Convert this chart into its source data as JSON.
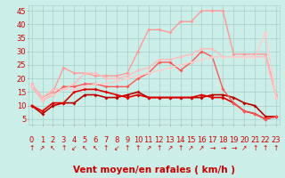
{
  "xlabel": "Vent moyen/en rafales ( km/h )",
  "bg_color": "#cceee8",
  "grid_color": "#aad4ce",
  "xticks": [
    0,
    1,
    2,
    3,
    4,
    5,
    6,
    7,
    8,
    9,
    10,
    11,
    12,
    13,
    14,
    15,
    16,
    17,
    18,
    19,
    20,
    21,
    22,
    23
  ],
  "yticks": [
    5,
    10,
    15,
    20,
    25,
    30,
    35,
    40,
    45
  ],
  "ylim": [
    3,
    47
  ],
  "xlim": [
    -0.3,
    23.3
  ],
  "wind_symbols": [
    "↑",
    "↗",
    "↖",
    "↑",
    "↙",
    "↖",
    "↖",
    "↑",
    "↙",
    "↑",
    "↑",
    "↗",
    "↑",
    "↗",
    "↑",
    "↗",
    "↗",
    "→",
    "→",
    "→",
    "↗",
    "↑",
    "↑",
    "↑"
  ],
  "series": [
    {
      "x": [
        0,
        1,
        2,
        3,
        4,
        5,
        6,
        7,
        8,
        9,
        10,
        11,
        12,
        13,
        14,
        15,
        16,
        17,
        18,
        19,
        20,
        21,
        22,
        23
      ],
      "y": [
        10,
        7,
        10,
        11,
        11,
        14,
        14,
        13,
        13,
        14,
        15,
        13,
        13,
        13,
        13,
        13,
        13,
        14,
        14,
        13,
        11,
        10,
        6,
        6
      ],
      "color": "#bb0000",
      "lw": 1.2,
      "marker": "D",
      "ms": 2.0
    },
    {
      "x": [
        0,
        1,
        2,
        3,
        4,
        5,
        6,
        7,
        8,
        9,
        10,
        11,
        12,
        13,
        14,
        15,
        16,
        17,
        18,
        19,
        20,
        21,
        22,
        23
      ],
      "y": [
        10,
        8,
        11,
        11,
        15,
        16,
        16,
        15,
        14,
        13,
        14,
        13,
        13,
        13,
        13,
        13,
        14,
        13,
        13,
        11,
        8,
        7,
        5,
        6
      ],
      "color": "#dd0000",
      "lw": 1.2,
      "marker": "D",
      "ms": 2.0
    },
    {
      "x": [
        0,
        1,
        2,
        3,
        4,
        5,
        6,
        7,
        8,
        9,
        10,
        11,
        12,
        13,
        14,
        15,
        16,
        17,
        18,
        19,
        20,
        21,
        22,
        23
      ],
      "y": [
        17,
        12,
        14,
        17,
        17,
        18,
        18,
        17,
        17,
        17,
        20,
        22,
        26,
        26,
        23,
        26,
        30,
        28,
        16,
        11,
        8,
        7,
        5,
        6
      ],
      "color": "#ff5555",
      "lw": 1.0,
      "marker": "D",
      "ms": 2.0
    },
    {
      "x": [
        0,
        1,
        2,
        3,
        4,
        5,
        6,
        7,
        8,
        9,
        10,
        11,
        12,
        13,
        14,
        15,
        16,
        17,
        18,
        19,
        20,
        21,
        22,
        23
      ],
      "y": [
        18,
        13,
        15,
        24,
        22,
        22,
        21,
        21,
        21,
        22,
        30,
        38,
        38,
        37,
        41,
        41,
        45,
        45,
        45,
        29,
        29,
        29,
        29,
        14
      ],
      "color": "#ff9999",
      "lw": 1.0,
      "marker": "D",
      "ms": 2.0
    },
    {
      "x": [
        0,
        1,
        2,
        3,
        4,
        5,
        6,
        7,
        8,
        9,
        10,
        11,
        12,
        13,
        14,
        15,
        16,
        17,
        18,
        19,
        20,
        21,
        22,
        23
      ],
      "y": [
        18,
        13,
        16,
        16,
        18,
        22,
        22,
        20,
        20,
        21,
        23,
        24,
        27,
        27,
        28,
        29,
        31,
        31,
        28,
        28,
        28,
        28,
        28,
        13
      ],
      "color": "#ffbbbb",
      "lw": 1.0,
      "marker": "D",
      "ms": 2.0
    },
    {
      "x": [
        0,
        1,
        2,
        3,
        4,
        5,
        6,
        7,
        8,
        9,
        10,
        11,
        12,
        13,
        14,
        15,
        16,
        17,
        18,
        19,
        20,
        21,
        22,
        23
      ],
      "y": [
        17,
        12,
        14,
        16,
        16,
        17,
        18,
        18,
        19,
        20,
        21,
        22,
        23,
        24,
        25,
        26,
        27,
        28,
        28,
        28,
        28,
        28,
        37,
        13
      ],
      "color": "#ffcccc",
      "lw": 1.0,
      "marker": "D",
      "ms": 2.0
    }
  ],
  "tick_fontsize": 6,
  "tick_color": "#cc0000",
  "xlabel_fontsize": 7.5
}
